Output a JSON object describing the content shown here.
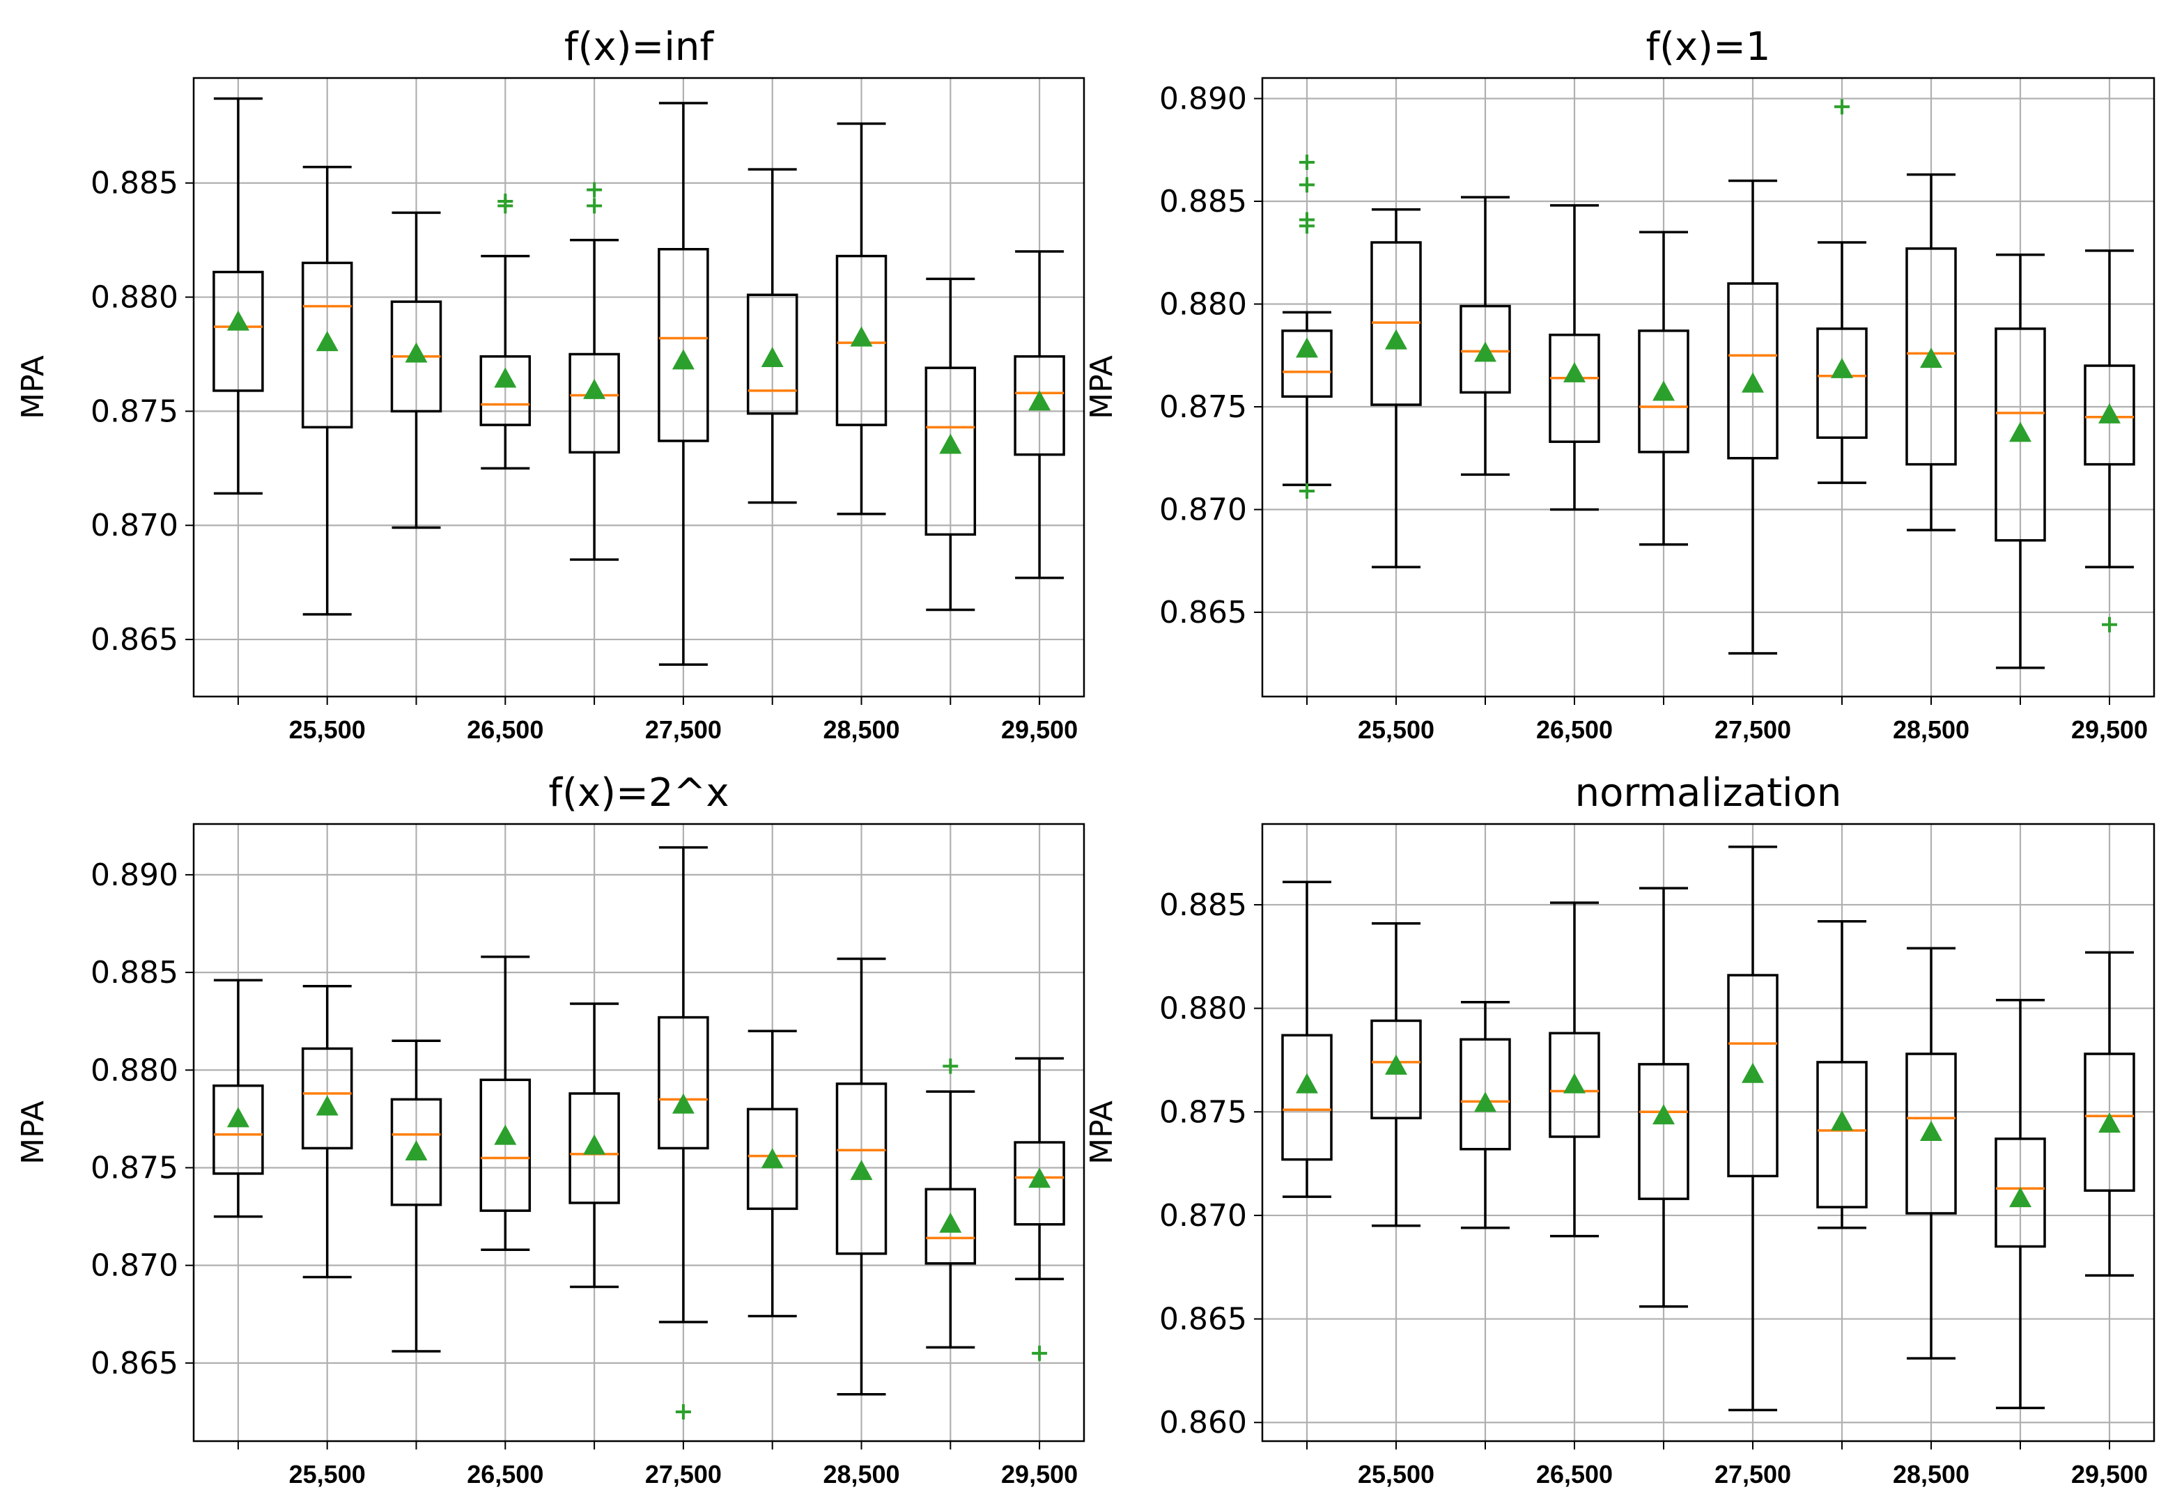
{
  "colors": {
    "box": "#000000",
    "median": "#ff7f0e",
    "mean": "#2ca02c",
    "flier": "#2ca02c",
    "grid": "#b0b0b0",
    "background": "#ffffff"
  },
  "chart_data": [
    {
      "type": "box",
      "title": "f(x)=inf",
      "ylabel": "MPA",
      "ylim": [
        0.8625,
        0.8896
      ],
      "yticks": [
        0.865,
        0.87,
        0.875,
        0.88,
        0.885
      ],
      "yticklabels": [
        "0.865",
        "0.870",
        "0.875",
        "0.880",
        "0.885"
      ],
      "xlabels": [
        "",
        "25,500",
        "",
        "26,500",
        "",
        "27,500",
        "",
        "28,500",
        "",
        "29,500"
      ],
      "boxes": [
        {
          "whislo": 0.8714,
          "q1": 0.8759,
          "med": 0.8787,
          "q3": 0.8811,
          "whishi": 0.8887,
          "mean": 0.8789,
          "fliers": []
        },
        {
          "whislo": 0.8661,
          "q1": 0.8743,
          "med": 0.8796,
          "q3": 0.8815,
          "whishi": 0.8857,
          "mean": 0.878,
          "fliers": []
        },
        {
          "whislo": 0.8699,
          "q1": 0.875,
          "med": 0.8774,
          "q3": 0.8798,
          "whishi": 0.8837,
          "mean": 0.8775,
          "fliers": []
        },
        {
          "whislo": 0.8725,
          "q1": 0.8744,
          "med": 0.8753,
          "q3": 0.8774,
          "whishi": 0.8818,
          "mean": 0.8764,
          "fliers": [
            0.884,
            0.8842
          ]
        },
        {
          "whislo": 0.8685,
          "q1": 0.8732,
          "med": 0.8757,
          "q3": 0.8775,
          "whishi": 0.8825,
          "mean": 0.8759,
          "fliers": [
            0.884,
            0.8847
          ]
        },
        {
          "whislo": 0.8639,
          "q1": 0.8737,
          "med": 0.8782,
          "q3": 0.8821,
          "whishi": 0.8885,
          "mean": 0.8772,
          "fliers": []
        },
        {
          "whislo": 0.871,
          "q1": 0.8749,
          "med": 0.8759,
          "q3": 0.8801,
          "whishi": 0.8856,
          "mean": 0.8773,
          "fliers": []
        },
        {
          "whislo": 0.8705,
          "q1": 0.8744,
          "med": 0.878,
          "q3": 0.8818,
          "whishi": 0.8876,
          "mean": 0.8782,
          "fliers": []
        },
        {
          "whislo": 0.8663,
          "q1": 0.8696,
          "med": 0.8743,
          "q3": 0.8769,
          "whishi": 0.8808,
          "mean": 0.8735,
          "fliers": []
        },
        {
          "whislo": 0.8677,
          "q1": 0.8731,
          "med": 0.8758,
          "q3": 0.8774,
          "whishi": 0.882,
          "mean": 0.8754,
          "fliers": []
        }
      ]
    },
    {
      "type": "box",
      "title": "f(x)=1",
      "ylabel": "MPA",
      "ylim": [
        0.8609,
        0.891
      ],
      "yticks": [
        0.865,
        0.87,
        0.875,
        0.88,
        0.885,
        0.89
      ],
      "yticklabels": [
        "0.865",
        "0.870",
        "0.875",
        "0.880",
        "0.885",
        "0.890"
      ],
      "xlabels": [
        "",
        "25,500",
        "",
        "26,500",
        "",
        "27,500",
        "",
        "28,500",
        "",
        "29,500"
      ],
      "boxes": [
        {
          "whislo": 0.8712,
          "q1": 0.8755,
          "med": 0.8767,
          "q3": 0.8787,
          "whishi": 0.8796,
          "mean": 0.8778,
          "fliers": [
            0.8709,
            0.8838,
            0.8841,
            0.8858,
            0.8869
          ]
        },
        {
          "whislo": 0.8672,
          "q1": 0.8751,
          "med": 0.8791,
          "q3": 0.883,
          "whishi": 0.8846,
          "mean": 0.8782,
          "fliers": []
        },
        {
          "whislo": 0.8717,
          "q1": 0.8757,
          "med": 0.8777,
          "q3": 0.8799,
          "whishi": 0.8852,
          "mean": 0.8776,
          "fliers": []
        },
        {
          "whislo": 0.87,
          "q1": 0.8733,
          "med": 0.8764,
          "q3": 0.8785,
          "whishi": 0.8848,
          "mean": 0.8766,
          "fliers": []
        },
        {
          "whislo": 0.8683,
          "q1": 0.8728,
          "med": 0.875,
          "q3": 0.8787,
          "whishi": 0.8835,
          "mean": 0.8757,
          "fliers": []
        },
        {
          "whislo": 0.863,
          "q1": 0.8725,
          "med": 0.8775,
          "q3": 0.881,
          "whishi": 0.886,
          "mean": 0.8761,
          "fliers": []
        },
        {
          "whislo": 0.8713,
          "q1": 0.8735,
          "med": 0.8765,
          "q3": 0.8788,
          "whishi": 0.883,
          "mean": 0.8768,
          "fliers": [
            0.8896
          ]
        },
        {
          "whislo": 0.869,
          "q1": 0.8722,
          "med": 0.8776,
          "q3": 0.8827,
          "whishi": 0.8863,
          "mean": 0.8773,
          "fliers": []
        },
        {
          "whislo": 0.8623,
          "q1": 0.8685,
          "med": 0.8747,
          "q3": 0.8788,
          "whishi": 0.8824,
          "mean": 0.8737,
          "fliers": []
        },
        {
          "whislo": 0.8672,
          "q1": 0.8722,
          "med": 0.8745,
          "q3": 0.877,
          "whishi": 0.8826,
          "mean": 0.8746,
          "fliers": [
            0.8644
          ]
        }
      ]
    },
    {
      "type": "box",
      "title": "f(x)=2^x",
      "ylabel": "MPA",
      "ylim": [
        0.861,
        0.8926
      ],
      "yticks": [
        0.865,
        0.87,
        0.875,
        0.88,
        0.885,
        0.89
      ],
      "yticklabels": [
        "0.865",
        "0.870",
        "0.875",
        "0.880",
        "0.885",
        "0.890"
      ],
      "xlabels": [
        "",
        "25,500",
        "",
        "26,500",
        "",
        "27,500",
        "",
        "28,500",
        "",
        "29,500"
      ],
      "boxes": [
        {
          "whislo": 0.8725,
          "q1": 0.8747,
          "med": 0.8767,
          "q3": 0.8792,
          "whishi": 0.8846,
          "mean": 0.8775,
          "fliers": []
        },
        {
          "whislo": 0.8694,
          "q1": 0.876,
          "med": 0.8788,
          "q3": 0.8811,
          "whishi": 0.8843,
          "mean": 0.8781,
          "fliers": []
        },
        {
          "whislo": 0.8656,
          "q1": 0.8731,
          "med": 0.8767,
          "q3": 0.8785,
          "whishi": 0.8815,
          "mean": 0.8758,
          "fliers": []
        },
        {
          "whislo": 0.8708,
          "q1": 0.8728,
          "med": 0.8755,
          "q3": 0.8795,
          "whishi": 0.8858,
          "mean": 0.8766,
          "fliers": []
        },
        {
          "whislo": 0.8689,
          "q1": 0.8732,
          "med": 0.8757,
          "q3": 0.8788,
          "whishi": 0.8834,
          "mean": 0.8761,
          "fliers": []
        },
        {
          "whislo": 0.8671,
          "q1": 0.876,
          "med": 0.8785,
          "q3": 0.8827,
          "whishi": 0.8914,
          "mean": 0.8782,
          "fliers": [
            0.8625
          ]
        },
        {
          "whislo": 0.8674,
          "q1": 0.8729,
          "med": 0.8756,
          "q3": 0.878,
          "whishi": 0.882,
          "mean": 0.8754,
          "fliers": []
        },
        {
          "whislo": 0.8634,
          "q1": 0.8706,
          "med": 0.8759,
          "q3": 0.8793,
          "whishi": 0.8857,
          "mean": 0.8748,
          "fliers": []
        },
        {
          "whislo": 0.8658,
          "q1": 0.8701,
          "med": 0.8714,
          "q3": 0.8739,
          "whishi": 0.8789,
          "mean": 0.8721,
          "fliers": [
            0.8802
          ]
        },
        {
          "whislo": 0.8693,
          "q1": 0.8721,
          "med": 0.8745,
          "q3": 0.8763,
          "whishi": 0.8806,
          "mean": 0.8744,
          "fliers": [
            0.8655
          ]
        }
      ]
    },
    {
      "type": "box",
      "title": "normalization",
      "ylabel": "MPA",
      "ylim": [
        0.8591,
        0.8889
      ],
      "yticks": [
        0.86,
        0.865,
        0.87,
        0.875,
        0.88,
        0.885
      ],
      "yticklabels": [
        "0.860",
        "0.865",
        "0.870",
        "0.875",
        "0.880",
        "0.885"
      ],
      "xlabels": [
        "",
        "25,500",
        "",
        "26,500",
        "",
        "27,500",
        "",
        "28,500",
        "",
        "29,500"
      ],
      "boxes": [
        {
          "whislo": 0.8709,
          "q1": 0.8727,
          "med": 0.8751,
          "q3": 0.8787,
          "whishi": 0.8861,
          "mean": 0.8763,
          "fliers": []
        },
        {
          "whislo": 0.8695,
          "q1": 0.8747,
          "med": 0.8774,
          "q3": 0.8794,
          "whishi": 0.8841,
          "mean": 0.8772,
          "fliers": []
        },
        {
          "whislo": 0.8694,
          "q1": 0.8732,
          "med": 0.8755,
          "q3": 0.8785,
          "whishi": 0.8803,
          "mean": 0.8754,
          "fliers": []
        },
        {
          "whislo": 0.869,
          "q1": 0.8738,
          "med": 0.876,
          "q3": 0.8788,
          "whishi": 0.8851,
          "mean": 0.8763,
          "fliers": []
        },
        {
          "whislo": 0.8656,
          "q1": 0.8708,
          "med": 0.875,
          "q3": 0.8773,
          "whishi": 0.8858,
          "mean": 0.8748,
          "fliers": []
        },
        {
          "whislo": 0.8606,
          "q1": 0.8719,
          "med": 0.8783,
          "q3": 0.8816,
          "whishi": 0.8878,
          "mean": 0.8768,
          "fliers": []
        },
        {
          "whislo": 0.8694,
          "q1": 0.8704,
          "med": 0.8741,
          "q3": 0.8774,
          "whishi": 0.8842,
          "mean": 0.8745,
          "fliers": []
        },
        {
          "whislo": 0.8631,
          "q1": 0.8701,
          "med": 0.8747,
          "q3": 0.8778,
          "whishi": 0.8829,
          "mean": 0.874,
          "fliers": []
        },
        {
          "whislo": 0.8607,
          "q1": 0.8685,
          "med": 0.8713,
          "q3": 0.8737,
          "whishi": 0.8804,
          "mean": 0.8708,
          "fliers": []
        },
        {
          "whislo": 0.8671,
          "q1": 0.8712,
          "med": 0.8748,
          "q3": 0.8778,
          "whishi": 0.8827,
          "mean": 0.8744,
          "fliers": []
        }
      ]
    }
  ]
}
